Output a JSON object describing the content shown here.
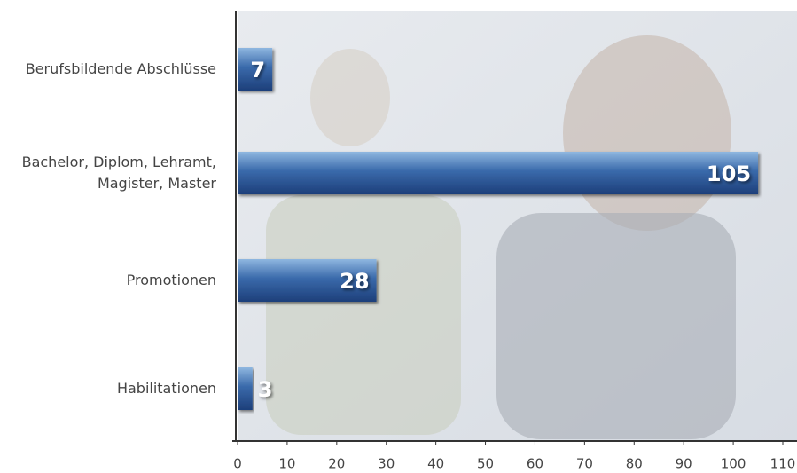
{
  "chart_data": {
    "type": "bar",
    "orientation": "horizontal",
    "categories": [
      "Berufsbildende Abschlüsse",
      "Bachelor, Diplom, Lehramt,\nMagister, Master",
      "Promotionen",
      "Habilitationen"
    ],
    "values": [
      7,
      105,
      28,
      3
    ],
    "color": "#2f5d9e",
    "xlim": [
      0,
      110
    ],
    "xticks": [
      0,
      10,
      20,
      30,
      40,
      50,
      60,
      70,
      80,
      90,
      100,
      110
    ]
  }
}
